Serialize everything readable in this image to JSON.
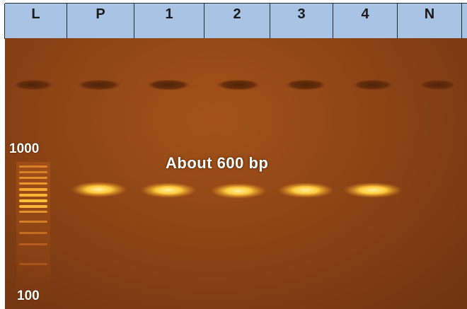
{
  "lanes": [
    {
      "label": "L"
    },
    {
      "label": "P"
    },
    {
      "label": "1"
    },
    {
      "label": "2"
    },
    {
      "label": "3"
    },
    {
      "label": "4"
    },
    {
      "label": "N"
    }
  ],
  "ladder": {
    "top_label": "1000",
    "bottom_label": "100"
  },
  "annotation": {
    "text": "About 600 bp"
  },
  "colors": {
    "header": "#a9c3e4",
    "gel": "#8d4415",
    "band": "#ffd24a"
  }
}
